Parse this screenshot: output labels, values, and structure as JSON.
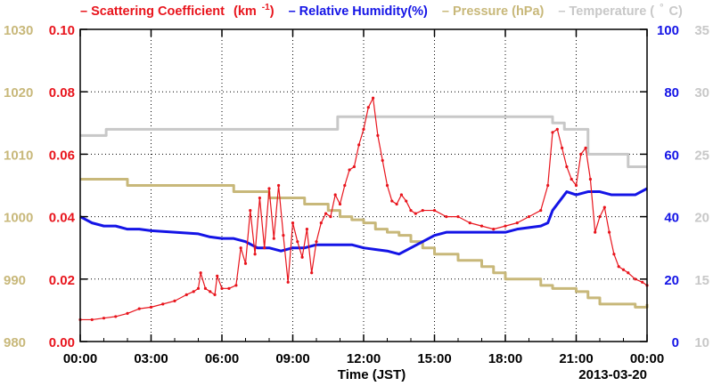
{
  "chart_data": {
    "type": "line",
    "title": "",
    "xlabel": "Time (JST)",
    "date_label": "2013-03-20",
    "x_tick_labels": [
      "00:00",
      "03:00",
      "06:00",
      "09:00",
      "12:00",
      "15:00",
      "18:00",
      "21:00",
      "00:00"
    ],
    "x_range_hours": [
      0,
      24
    ],
    "grid": true,
    "legend_position": "top",
    "axes": {
      "scattering": {
        "ticks": [
          "0.00",
          "0.02",
          "0.04",
          "0.06",
          "0.08",
          "0.10"
        ],
        "range": [
          0,
          0.1
        ],
        "color": "#e8141c"
      },
      "humidity": {
        "ticks": [
          "0",
          "20",
          "40",
          "60",
          "80",
          "100"
        ],
        "range": [
          0,
          100
        ],
        "color": "#1414e6"
      },
      "pressure": {
        "ticks": [
          "980",
          "990",
          "1000",
          "1010",
          "1020",
          "1030"
        ],
        "range": [
          980,
          1030
        ],
        "color": "#c8b87a"
      },
      "temperature": {
        "ticks": [
          "10",
          "15",
          "20",
          "25",
          "30",
          "35"
        ],
        "range": [
          10,
          35
        ],
        "color": "#c8c8c8"
      }
    },
    "series": [
      {
        "name": "Scattering Coefficient",
        "unit": "(km",
        "unit_exp": "-1",
        "unit_close": ")",
        "axis": "scattering",
        "color": "#e8141c",
        "points": [
          [
            0,
            0.007
          ],
          [
            0.5,
            0.007
          ],
          [
            1,
            0.0075
          ],
          [
            1.5,
            0.008
          ],
          [
            2,
            0.009
          ],
          [
            2.5,
            0.0105
          ],
          [
            3,
            0.011
          ],
          [
            3.5,
            0.012
          ],
          [
            4,
            0.013
          ],
          [
            4.5,
            0.015
          ],
          [
            4.8,
            0.016
          ],
          [
            5,
            0.017
          ],
          [
            5.1,
            0.022
          ],
          [
            5.3,
            0.017
          ],
          [
            5.5,
            0.016
          ],
          [
            5.7,
            0.015
          ],
          [
            5.8,
            0.021
          ],
          [
            6,
            0.017
          ],
          [
            6.3,
            0.017
          ],
          [
            6.6,
            0.018
          ],
          [
            6.8,
            0.03
          ],
          [
            7,
            0.025
          ],
          [
            7.2,
            0.042
          ],
          [
            7.4,
            0.028
          ],
          [
            7.6,
            0.046
          ],
          [
            7.8,
            0.03
          ],
          [
            8,
            0.049
          ],
          [
            8.2,
            0.033
          ],
          [
            8.4,
            0.05
          ],
          [
            8.6,
            0.034
          ],
          [
            8.8,
            0.019
          ],
          [
            9,
            0.038
          ],
          [
            9.2,
            0.032
          ],
          [
            9.4,
            0.027
          ],
          [
            9.6,
            0.036
          ],
          [
            9.8,
            0.022
          ],
          [
            10,
            0.032
          ],
          [
            10.2,
            0.038
          ],
          [
            10.4,
            0.041
          ],
          [
            10.6,
            0.04
          ],
          [
            10.8,
            0.047
          ],
          [
            11,
            0.044
          ],
          [
            11.2,
            0.05
          ],
          [
            11.4,
            0.055
          ],
          [
            11.6,
            0.056
          ],
          [
            11.8,
            0.063
          ],
          [
            12,
            0.068
          ],
          [
            12.2,
            0.075
          ],
          [
            12.4,
            0.078
          ],
          [
            12.6,
            0.066
          ],
          [
            12.8,
            0.058
          ],
          [
            13,
            0.05
          ],
          [
            13.2,
            0.045
          ],
          [
            13.4,
            0.044
          ],
          [
            13.6,
            0.047
          ],
          [
            13.8,
            0.045
          ],
          [
            14,
            0.042
          ],
          [
            14.2,
            0.041
          ],
          [
            14.5,
            0.042
          ],
          [
            15,
            0.042
          ],
          [
            15.5,
            0.04
          ],
          [
            16,
            0.04
          ],
          [
            16.5,
            0.038
          ],
          [
            17,
            0.037
          ],
          [
            17.5,
            0.036
          ],
          [
            18,
            0.037
          ],
          [
            18.5,
            0.038
          ],
          [
            19,
            0.04
          ],
          [
            19.5,
            0.042
          ],
          [
            19.8,
            0.05
          ],
          [
            20,
            0.067
          ],
          [
            20.2,
            0.068
          ],
          [
            20.4,
            0.062
          ],
          [
            20.6,
            0.056
          ],
          [
            20.8,
            0.052
          ],
          [
            21,
            0.05
          ],
          [
            21.2,
            0.06
          ],
          [
            21.4,
            0.062
          ],
          [
            21.6,
            0.052
          ],
          [
            21.8,
            0.035
          ],
          [
            22,
            0.04
          ],
          [
            22.2,
            0.043
          ],
          [
            22.4,
            0.035
          ],
          [
            22.6,
            0.028
          ],
          [
            22.8,
            0.024
          ],
          [
            23,
            0.023
          ],
          [
            23.2,
            0.022
          ],
          [
            23.5,
            0.02
          ],
          [
            23.8,
            0.019
          ],
          [
            24,
            0.018
          ]
        ]
      },
      {
        "name": "Relative Humidity(%)",
        "axis": "humidity",
        "color": "#1414e6",
        "points": [
          [
            0,
            40
          ],
          [
            0.5,
            38
          ],
          [
            1,
            37
          ],
          [
            1.5,
            37
          ],
          [
            2,
            36
          ],
          [
            2.5,
            36
          ],
          [
            3,
            35.5
          ],
          [
            4,
            35
          ],
          [
            5,
            34.5
          ],
          [
            5.5,
            33.5
          ],
          [
            6,
            33
          ],
          [
            6.5,
            33
          ],
          [
            7,
            32
          ],
          [
            7.5,
            30
          ],
          [
            8,
            30
          ],
          [
            8.5,
            29
          ],
          [
            9,
            30
          ],
          [
            9.5,
            30
          ],
          [
            10,
            31
          ],
          [
            10.5,
            31
          ],
          [
            11,
            31
          ],
          [
            11.5,
            31
          ],
          [
            12,
            30
          ],
          [
            12.5,
            29.5
          ],
          [
            13,
            29
          ],
          [
            13.5,
            28
          ],
          [
            14,
            30
          ],
          [
            14.5,
            32
          ],
          [
            15,
            34
          ],
          [
            15.5,
            35
          ],
          [
            16,
            35
          ],
          [
            16.5,
            35
          ],
          [
            17,
            35
          ],
          [
            17.5,
            35
          ],
          [
            18,
            35
          ],
          [
            18.5,
            36
          ],
          [
            19,
            36.5
          ],
          [
            19.5,
            37
          ],
          [
            19.8,
            38
          ],
          [
            20,
            42
          ],
          [
            20.3,
            45
          ],
          [
            20.6,
            48
          ],
          [
            21,
            47
          ],
          [
            21.5,
            48
          ],
          [
            22,
            48
          ],
          [
            22.5,
            47
          ],
          [
            23,
            47
          ],
          [
            23.5,
            47
          ],
          [
            24,
            49
          ]
        ]
      },
      {
        "name": "Pressure (hPa)",
        "axis": "pressure",
        "color": "#c8b87a",
        "points": [
          [
            0,
            1006
          ],
          [
            1,
            1006
          ],
          [
            2,
            1005
          ],
          [
            3,
            1005
          ],
          [
            4,
            1005
          ],
          [
            5,
            1005
          ],
          [
            6,
            1005
          ],
          [
            6.5,
            1004
          ],
          [
            7.5,
            1004
          ],
          [
            8,
            1003
          ],
          [
            9,
            1003
          ],
          [
            9.5,
            1002
          ],
          [
            10.5,
            1001
          ],
          [
            11,
            1000
          ],
          [
            11.5,
            999.5
          ],
          [
            12,
            999
          ],
          [
            12.5,
            998
          ],
          [
            13,
            997.5
          ],
          [
            13.5,
            997
          ],
          [
            14,
            996
          ],
          [
            14.5,
            995
          ],
          [
            15,
            994
          ],
          [
            16,
            993
          ],
          [
            17,
            992
          ],
          [
            17.5,
            991
          ],
          [
            18,
            990
          ],
          [
            19,
            990
          ],
          [
            19.5,
            989
          ],
          [
            20,
            988.5
          ],
          [
            21,
            988
          ],
          [
            21.5,
            987
          ],
          [
            22,
            986
          ],
          [
            23,
            986
          ],
          [
            23.5,
            985.5
          ],
          [
            24,
            986
          ]
        ]
      },
      {
        "name": "Temperature (",
        "name_suffix": "C)",
        "axis": "temperature",
        "color": "#c8c8c8",
        "points": [
          [
            0,
            26.5
          ],
          [
            1,
            26.5
          ],
          [
            1.1,
            27
          ],
          [
            2,
            27
          ],
          [
            3,
            27
          ],
          [
            4,
            27
          ],
          [
            5,
            27
          ],
          [
            6,
            27
          ],
          [
            7,
            27
          ],
          [
            8,
            27
          ],
          [
            9,
            27
          ],
          [
            10,
            27
          ],
          [
            10.8,
            27
          ],
          [
            10.9,
            28
          ],
          [
            12,
            28
          ],
          [
            13,
            28
          ],
          [
            14,
            28
          ],
          [
            15,
            28
          ],
          [
            16,
            28
          ],
          [
            17,
            28
          ],
          [
            18,
            28
          ],
          [
            19,
            28
          ],
          [
            19.7,
            28
          ],
          [
            20,
            27.5
          ],
          [
            20.5,
            27
          ],
          [
            21,
            27
          ],
          [
            21.5,
            25
          ],
          [
            22,
            25
          ],
          [
            23,
            25
          ],
          [
            23.2,
            24
          ],
          [
            24,
            24
          ]
        ]
      }
    ]
  }
}
